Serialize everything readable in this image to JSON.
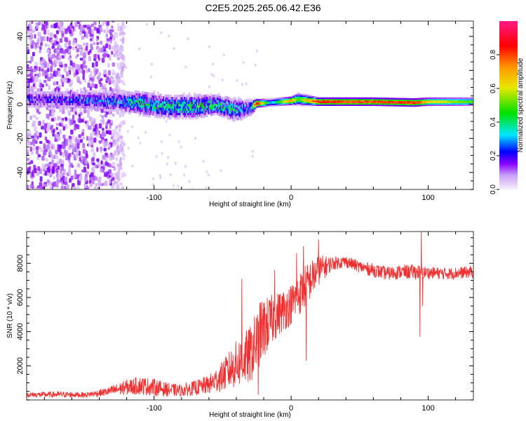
{
  "title": "C2E5.2025.265.06.42.E36",
  "chart_data": [
    {
      "type": "heatmap",
      "title": "C2E5.2025.265.06.42.E36",
      "xlabel": "Height of straight line (km)",
      "ylabel": "Frequency (Hz)",
      "xlim": [
        -193,
        133
      ],
      "ylim": [
        -50,
        49
      ],
      "xticks": [
        -100,
        0,
        100
      ],
      "yticks": [
        -40,
        -20,
        0,
        20,
        40
      ],
      "xtick_labels": [
        "-100",
        "0",
        "100"
      ],
      "ytick_labels": [
        "-40",
        "-20",
        "0",
        "20",
        "40"
      ],
      "track": [
        {
          "x": -190,
          "f": 3,
          "amp": 0.2,
          "width": 5
        },
        {
          "x": -160,
          "f": 3,
          "amp": 0.22,
          "width": 5
        },
        {
          "x": -130,
          "f": 2,
          "amp": 0.3,
          "width": 5
        },
        {
          "x": -110,
          "f": 1,
          "amp": 0.4,
          "width": 6
        },
        {
          "x": -90,
          "f": -1,
          "amp": 0.4,
          "width": 6
        },
        {
          "x": -70,
          "f": -1,
          "amp": 0.45,
          "width": 6
        },
        {
          "x": -55,
          "f": 0,
          "amp": 0.45,
          "width": 5
        },
        {
          "x": -40,
          "f": -3,
          "amp": 0.35,
          "width": 6
        },
        {
          "x": -30,
          "f": -2,
          "amp": 0.3,
          "width": 4
        },
        {
          "x": -25,
          "f": 0.5,
          "amp": 0.95,
          "width": 2
        },
        {
          "x": -15,
          "f": 1,
          "amp": 0.3,
          "width": 2
        },
        {
          "x": 0,
          "f": 2,
          "amp": 0.8,
          "width": 2
        },
        {
          "x": 5,
          "f": 3,
          "amp": 0.5,
          "width": 3
        },
        {
          "x": 20,
          "f": 1.5,
          "amp": 0.9,
          "width": 2
        },
        {
          "x": 60,
          "f": 1.5,
          "amp": 0.85,
          "width": 2
        },
        {
          "x": 90,
          "f": 1,
          "amp": 0.9,
          "width": 2
        },
        {
          "x": 100,
          "f": 1.5,
          "amp": 0.7,
          "width": 2
        },
        {
          "x": 130,
          "f": 1.5,
          "amp": 0.55,
          "width": 2
        }
      ],
      "noise_region": {
        "x_from": -193,
        "x_to": -130,
        "level": 0.12
      },
      "colorbar": {
        "label": "Normalized spectral amplitude",
        "range": [
          0,
          1
        ],
        "ticks": [
          "0.0",
          "0.2",
          "0.4",
          "0.6",
          "0.8"
        ],
        "tick_values": [
          0,
          0.2,
          0.4,
          0.6,
          0.8
        ],
        "colormap": [
          {
            "v": 0.0,
            "c": "#f4eefc"
          },
          {
            "v": 0.08,
            "c": "#c9a0f5"
          },
          {
            "v": 0.15,
            "c": "#8a00ff"
          },
          {
            "v": 0.22,
            "c": "#0000ff"
          },
          {
            "v": 0.32,
            "c": "#00e8ff"
          },
          {
            "v": 0.45,
            "c": "#00e000"
          },
          {
            "v": 0.6,
            "c": "#e8e800"
          },
          {
            "v": 0.72,
            "c": "#ff9900"
          },
          {
            "v": 0.85,
            "c": "#ff0000"
          },
          {
            "v": 1.0,
            "c": "#ff1a8c"
          }
        ]
      }
    },
    {
      "type": "line",
      "xlabel": "Height of straight line (km)",
      "ylabel": "SNR (10 * v/v)",
      "xlim": [
        -193,
        133
      ],
      "ylim": [
        0,
        9860
      ],
      "xticks": [
        -100,
        0,
        100
      ],
      "yticks": [
        2000,
        4000,
        6000,
        8000
      ],
      "xtick_labels": [
        "-100",
        "0",
        "100"
      ],
      "ytick_labels": [
        "2000",
        "4000",
        "6000",
        "8000"
      ],
      "color": "#f03030",
      "baseline": [
        {
          "x": -193,
          "y": 300,
          "noise": 150
        },
        {
          "x": -170,
          "y": 320,
          "noise": 180
        },
        {
          "x": -150,
          "y": 300,
          "noise": 150
        },
        {
          "x": -140,
          "y": 400,
          "noise": 200
        },
        {
          "x": -130,
          "y": 550,
          "noise": 300
        },
        {
          "x": -120,
          "y": 750,
          "noise": 450
        },
        {
          "x": -110,
          "y": 850,
          "noise": 550
        },
        {
          "x": -100,
          "y": 750,
          "noise": 500
        },
        {
          "x": -90,
          "y": 600,
          "noise": 400
        },
        {
          "x": -80,
          "y": 550,
          "noise": 350
        },
        {
          "x": -70,
          "y": 700,
          "noise": 450
        },
        {
          "x": -60,
          "y": 900,
          "noise": 550
        },
        {
          "x": -50,
          "y": 1400,
          "noise": 900
        },
        {
          "x": -40,
          "y": 2100,
          "noise": 1400
        },
        {
          "x": -30,
          "y": 2600,
          "noise": 1700
        },
        {
          "x": -22,
          "y": 4000,
          "noise": 1900
        },
        {
          "x": -10,
          "y": 5000,
          "noise": 1300
        },
        {
          "x": 0,
          "y": 5600,
          "noise": 1200
        },
        {
          "x": 10,
          "y": 6600,
          "noise": 1300
        },
        {
          "x": 20,
          "y": 7600,
          "noise": 900
        },
        {
          "x": 30,
          "y": 8000,
          "noise": 400
        },
        {
          "x": 40,
          "y": 8100,
          "noise": 350
        },
        {
          "x": 50,
          "y": 7800,
          "noise": 350
        },
        {
          "x": 60,
          "y": 7600,
          "noise": 400
        },
        {
          "x": 70,
          "y": 7400,
          "noise": 400
        },
        {
          "x": 80,
          "y": 7500,
          "noise": 400
        },
        {
          "x": 90,
          "y": 7500,
          "noise": 450
        },
        {
          "x": 100,
          "y": 7450,
          "noise": 350
        },
        {
          "x": 115,
          "y": 7400,
          "noise": 350
        },
        {
          "x": 133,
          "y": 7500,
          "noise": 350
        }
      ],
      "spikes": [
        {
          "x": -36,
          "y": 7100
        },
        {
          "x": -24,
          "y": 300
        },
        {
          "x": -12,
          "y": 7600
        },
        {
          "x": 4,
          "y": 8600
        },
        {
          "x": 9,
          "y": 9000
        },
        {
          "x": 11,
          "y": 2300
        },
        {
          "x": 20,
          "y": 9400
        },
        {
          "x": 94,
          "y": 3700
        },
        {
          "x": 95,
          "y": 9900
        },
        {
          "x": 96,
          "y": 5500
        }
      ]
    }
  ]
}
